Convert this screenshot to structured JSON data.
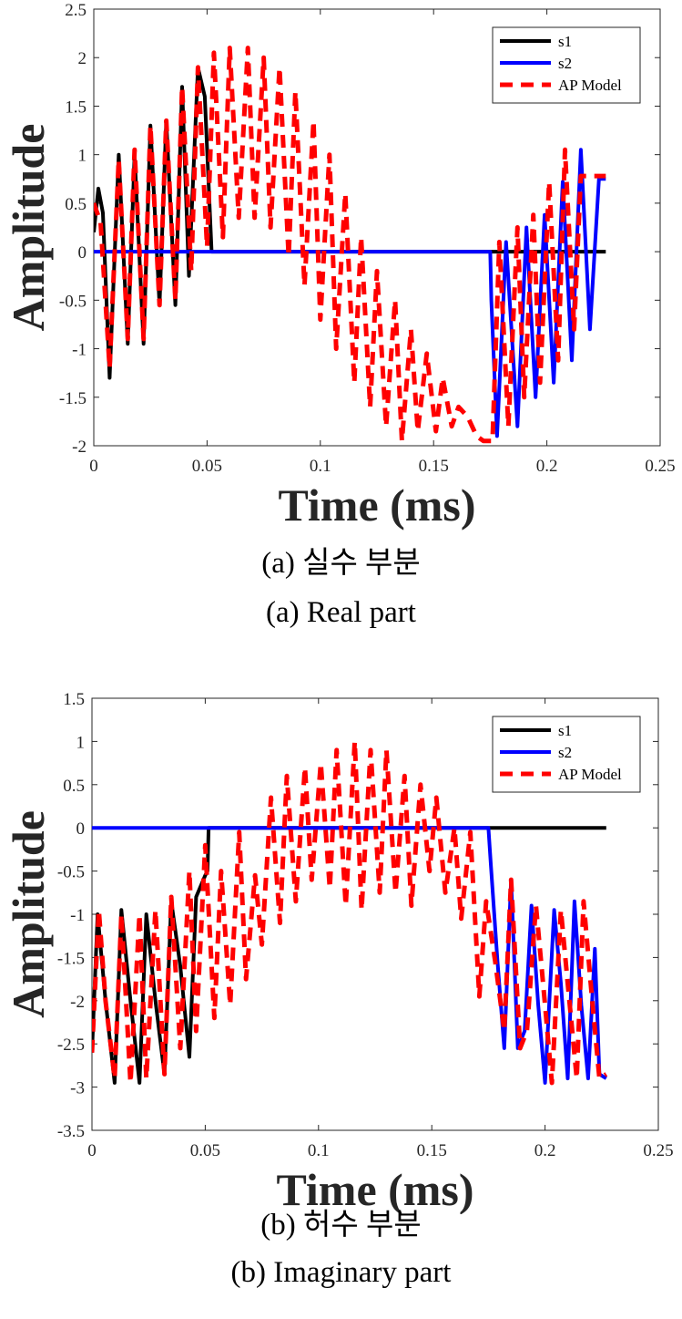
{
  "chart_data": [
    {
      "type": "line",
      "xlabel": "Time (ms)",
      "ylabel": "Amplitude",
      "xlim": [
        0,
        0.25
      ],
      "ylim": [
        -2,
        2.5
      ],
      "xticks": [
        "0",
        "0.05",
        "0.1",
        "0.15",
        "0.2",
        "0.25"
      ],
      "yticks": [
        "-2",
        "-1.5",
        "-1",
        "-0.5",
        "0",
        "0.5",
        "1",
        "1.5",
        "2",
        "2.5"
      ],
      "legend_position": "top-right",
      "grid": false,
      "series": [
        {
          "name": "s1",
          "color": "#000000",
          "style": "solid",
          "x": [
            0.0,
            0.002,
            0.004,
            0.007,
            0.011,
            0.015,
            0.018,
            0.022,
            0.025,
            0.029,
            0.032,
            0.036,
            0.039,
            0.042,
            0.046,
            0.049,
            0.052,
            0.06,
            0.1,
            0.15,
            0.2,
            0.226
          ],
          "y": [
            0.2,
            0.65,
            0.4,
            -1.3,
            1.0,
            -0.95,
            1.0,
            -0.95,
            1.3,
            -0.55,
            1.35,
            -0.55,
            1.7,
            -0.25,
            1.9,
            1.6,
            0.0,
            0.0,
            0.0,
            0.0,
            0.0,
            0.0
          ]
        },
        {
          "name": "s2",
          "color": "#0000ff",
          "style": "solid",
          "x": [
            0.0,
            0.05,
            0.1,
            0.15,
            0.175,
            0.1755,
            0.178,
            0.182,
            0.187,
            0.191,
            0.195,
            0.199,
            0.203,
            0.207,
            0.211,
            0.215,
            0.219,
            0.223,
            0.226
          ],
          "y": [
            0.0,
            0.0,
            0.0,
            0.0,
            0.0,
            -0.5,
            -1.9,
            0.1,
            -1.8,
            0.25,
            -1.5,
            0.38,
            -1.35,
            0.72,
            -1.12,
            1.05,
            -0.8,
            0.75,
            0.75
          ]
        },
        {
          "name": "AP Model",
          "color": "#ff0000",
          "style": "dashed",
          "x": [
            0.0,
            0.003,
            0.007,
            0.011,
            0.015,
            0.018,
            0.022,
            0.025,
            0.029,
            0.032,
            0.036,
            0.039,
            0.043,
            0.046,
            0.05,
            0.053,
            0.057,
            0.06,
            0.064,
            0.068,
            0.071,
            0.075,
            0.078,
            0.082,
            0.086,
            0.089,
            0.093,
            0.097,
            0.1,
            0.104,
            0.107,
            0.111,
            0.115,
            0.118,
            0.122,
            0.125,
            0.129,
            0.133,
            0.136,
            0.14,
            0.143,
            0.147,
            0.151,
            0.154,
            0.158,
            0.161,
            0.165,
            0.169,
            0.172,
            0.176,
            0.179,
            0.183,
            0.187,
            0.19,
            0.194,
            0.197,
            0.201,
            0.205,
            0.208,
            0.212,
            0.215,
            0.219,
            0.223,
            0.226
          ],
          "y": [
            0.5,
            0.3,
            -1.2,
            0.95,
            -0.9,
            1.05,
            -0.9,
            1.3,
            -0.55,
            1.35,
            -0.5,
            1.7,
            -0.2,
            1.9,
            0.05,
            2.05,
            0.15,
            2.1,
            0.35,
            2.1,
            0.35,
            2.0,
            0.25,
            1.9,
            -0.05,
            1.65,
            -0.35,
            1.35,
            -0.7,
            1.0,
            -1.0,
            0.6,
            -1.35,
            0.15,
            -1.6,
            -0.2,
            -1.8,
            -0.5,
            -1.95,
            -0.8,
            -1.85,
            -1.05,
            -1.85,
            -1.3,
            -1.8,
            -1.6,
            -1.7,
            -1.9,
            -1.95,
            -1.95,
            0.1,
            -1.8,
            0.25,
            -1.5,
            0.38,
            -1.35,
            0.72,
            -1.12,
            1.05,
            -0.8,
            0.78,
            0.78,
            0.78,
            0.78
          ]
        }
      ]
    },
    {
      "type": "line",
      "xlabel": "Time (ms)",
      "ylabel": "Amplitude",
      "xlim": [
        0,
        0.25
      ],
      "ylim": [
        -3.5,
        1.5
      ],
      "xticks": [
        "0",
        "0.05",
        "0.1",
        "0.15",
        "0.2",
        "0.25"
      ],
      "yticks": [
        "-3.5",
        "-3",
        "-2.5",
        "-2",
        "-1.5",
        "-1",
        "-0.5",
        "0",
        "0.5",
        "1",
        "1.5"
      ],
      "legend_position": "top-right",
      "grid": false,
      "series": [
        {
          "name": "s1",
          "color": "#000000",
          "style": "solid",
          "x": [
            0.0,
            0.0025,
            0.006,
            0.01,
            0.013,
            0.017,
            0.021,
            0.024,
            0.028,
            0.032,
            0.035,
            0.039,
            0.043,
            0.046,
            0.05,
            0.051,
            0.0515,
            0.06,
            0.1,
            0.15,
            0.2,
            0.227
          ],
          "y": [
            -2.6,
            -1.0,
            -2.0,
            -2.95,
            -0.95,
            -2.0,
            -2.95,
            -1.0,
            -2.0,
            -2.85,
            -0.85,
            -1.6,
            -2.65,
            -0.8,
            -0.55,
            -0.5,
            0.0,
            0.0,
            0.0,
            0.0,
            0.0,
            0.0
          ]
        },
        {
          "name": "s2",
          "color": "#0000ff",
          "style": "solid",
          "x": [
            0.0,
            0.05,
            0.1,
            0.15,
            0.175,
            0.176,
            0.179,
            0.182,
            0.185,
            0.188,
            0.191,
            0.194,
            0.197,
            0.2,
            0.204,
            0.207,
            0.21,
            0.213,
            0.216,
            0.219,
            0.222,
            0.224,
            0.227
          ],
          "y": [
            0.0,
            0.0,
            0.0,
            0.0,
            0.0,
            -0.4,
            -1.55,
            -2.55,
            -0.6,
            -2.55,
            -2.35,
            -0.9,
            -2.05,
            -2.95,
            -0.95,
            -1.8,
            -2.9,
            -0.85,
            -2.05,
            -2.9,
            -1.4,
            -2.85,
            -2.9
          ]
        },
        {
          "name": "AP Model",
          "color": "#ff0000",
          "style": "dashed",
          "x": [
            0.0,
            0.003,
            0.006,
            0.01,
            0.013,
            0.017,
            0.021,
            0.024,
            0.028,
            0.032,
            0.035,
            0.039,
            0.043,
            0.046,
            0.05,
            0.054,
            0.057,
            0.061,
            0.065,
            0.068,
            0.072,
            0.075,
            0.079,
            0.083,
            0.086,
            0.09,
            0.094,
            0.097,
            0.101,
            0.105,
            0.108,
            0.112,
            0.116,
            0.119,
            0.123,
            0.127,
            0.13,
            0.134,
            0.138,
            0.141,
            0.145,
            0.149,
            0.152,
            0.156,
            0.16,
            0.163,
            0.167,
            0.171,
            0.174,
            0.178,
            0.182,
            0.185,
            0.189,
            0.192,
            0.196,
            0.2,
            0.203,
            0.207,
            0.21,
            0.214,
            0.217,
            0.221,
            0.224,
            0.227
          ],
          "y": [
            -2.6,
            -0.95,
            -2.0,
            -2.9,
            -1.0,
            -2.95,
            -1.0,
            -2.9,
            -0.95,
            -2.85,
            -0.8,
            -2.55,
            -0.5,
            -2.35,
            -0.2,
            -2.2,
            -0.5,
            -2.05,
            -0.05,
            -1.75,
            -0.55,
            -1.35,
            0.35,
            -1.1,
            0.6,
            -0.85,
            0.7,
            -0.6,
            0.75,
            -0.7,
            0.9,
            -0.9,
            1.0,
            -0.95,
            0.9,
            -0.75,
            0.9,
            -0.75,
            0.6,
            -0.9,
            0.5,
            -0.5,
            0.35,
            -0.75,
            0.0,
            -1.05,
            -0.05,
            -1.95,
            -0.85,
            -1.55,
            -2.35,
            -0.6,
            -2.55,
            -2.35,
            -0.9,
            -2.05,
            -2.95,
            -0.95,
            -1.8,
            -2.9,
            -0.85,
            -2.05,
            -2.9,
            -2.85
          ]
        }
      ]
    }
  ],
  "captions": {
    "a_korean": "(a) 실수 부분",
    "a_english": "(a) Real part",
    "b_korean": "(b) 허수 부분",
    "b_english": "(b) Imaginary part"
  }
}
